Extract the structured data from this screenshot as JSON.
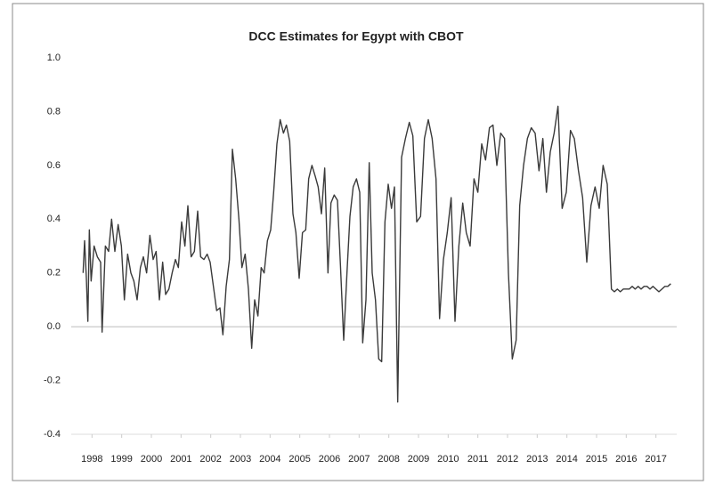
{
  "chart_data": {
    "type": "line",
    "title": "DCC Estimates for Egypt with CBOT",
    "color": "#3a3a3a",
    "x": [
      1997.7,
      1997.75,
      1997.81,
      1997.86,
      1997.91,
      1997.97,
      1998.07,
      1998.18,
      1998.29,
      1998.34,
      1998.45,
      1998.56,
      1998.66,
      1998.77,
      1998.88,
      1998.99,
      1999.09,
      1999.2,
      1999.31,
      1999.41,
      1999.52,
      1999.63,
      1999.73,
      1999.84,
      1999.95,
      2000.06,
      2000.16,
      2000.27,
      2000.38,
      2000.48,
      2000.59,
      2000.7,
      2000.81,
      2000.91,
      2001.02,
      2001.13,
      2001.23,
      2001.34,
      2001.45,
      2001.56,
      2001.66,
      2001.77,
      2001.88,
      2001.98,
      2002.09,
      2002.2,
      2002.31,
      2002.41,
      2002.52,
      2002.63,
      2002.73,
      2002.84,
      2002.95,
      2003.05,
      2003.16,
      2003.27,
      2003.38,
      2003.48,
      2003.59,
      2003.7,
      2003.8,
      2003.91,
      2004.02,
      2004.12,
      2004.23,
      2004.34,
      2004.45,
      2004.55,
      2004.66,
      2004.77,
      2004.87,
      2004.98,
      2005.09,
      2005.2,
      2005.3,
      2005.41,
      2005.52,
      2005.62,
      2005.73,
      2005.84,
      2005.95,
      2006.05,
      2006.16,
      2006.27,
      2006.37,
      2006.48,
      2006.59,
      2006.69,
      2006.8,
      2006.91,
      2007.02,
      2007.12,
      2007.23,
      2007.34,
      2007.44,
      2007.55,
      2007.66,
      2007.76,
      2007.87,
      2007.98,
      2008.09,
      2008.19,
      2008.3,
      2008.43,
      2008.56,
      2008.69,
      2008.81,
      2008.94,
      2009.07,
      2009.2,
      2009.33,
      2009.46,
      2009.59,
      2009.71,
      2009.84,
      2009.97,
      2010.1,
      2010.23,
      2010.36,
      2010.49,
      2010.61,
      2010.74,
      2010.87,
      2011.0,
      2011.13,
      2011.26,
      2011.39,
      2011.51,
      2011.64,
      2011.77,
      2011.9,
      2012.03,
      2012.16,
      2012.29,
      2012.41,
      2012.54,
      2012.67,
      2012.8,
      2012.93,
      2013.06,
      2013.19,
      2013.31,
      2013.44,
      2013.57,
      2013.7,
      2013.84,
      2013.98,
      2014.12,
      2014.25,
      2014.39,
      2014.53,
      2014.67,
      2014.81,
      2014.95,
      2015.09,
      2015.22,
      2015.36,
      2015.5,
      2015.6,
      2015.7,
      2015.8,
      2015.9,
      2016.0,
      2016.1,
      2016.2,
      2016.3,
      2016.4,
      2016.5,
      2016.6,
      2016.7,
      2016.8,
      2016.9,
      2017.0,
      2017.1,
      2017.2,
      2017.3,
      2017.4,
      2017.5
    ],
    "values": [
      0.2,
      0.32,
      0.18,
      0.02,
      0.36,
      0.17,
      0.3,
      0.26,
      0.24,
      -0.02,
      0.3,
      0.28,
      0.4,
      0.28,
      0.38,
      0.3,
      0.1,
      0.27,
      0.2,
      0.17,
      0.1,
      0.22,
      0.26,
      0.2,
      0.34,
      0.25,
      0.28,
      0.1,
      0.24,
      0.12,
      0.14,
      0.2,
      0.25,
      0.22,
      0.39,
      0.3,
      0.45,
      0.26,
      0.28,
      0.43,
      0.26,
      0.25,
      0.27,
      0.24,
      0.15,
      0.06,
      0.07,
      -0.03,
      0.15,
      0.25,
      0.66,
      0.55,
      0.4,
      0.22,
      0.27,
      0.14,
      -0.08,
      0.1,
      0.04,
      0.22,
      0.2,
      0.32,
      0.36,
      0.5,
      0.68,
      0.77,
      0.72,
      0.75,
      0.69,
      0.42,
      0.35,
      0.18,
      0.35,
      0.36,
      0.55,
      0.6,
      0.56,
      0.52,
      0.42,
      0.59,
      0.2,
      0.46,
      0.49,
      0.47,
      0.23,
      -0.05,
      0.2,
      0.41,
      0.52,
      0.55,
      0.5,
      -0.06,
      0.1,
      0.61,
      0.2,
      0.1,
      -0.12,
      -0.13,
      0.39,
      0.53,
      0.44,
      0.52,
      -0.28,
      0.63,
      0.7,
      0.76,
      0.71,
      0.39,
      0.41,
      0.7,
      0.77,
      0.7,
      0.55,
      0.03,
      0.25,
      0.35,
      0.48,
      0.02,
      0.3,
      0.46,
      0.35,
      0.3,
      0.55,
      0.5,
      0.68,
      0.62,
      0.74,
      0.75,
      0.6,
      0.72,
      0.7,
      0.2,
      -0.12,
      -0.05,
      0.45,
      0.6,
      0.7,
      0.74,
      0.72,
      0.58,
      0.7,
      0.5,
      0.65,
      0.72,
      0.82,
      0.44,
      0.5,
      0.73,
      0.7,
      0.58,
      0.48,
      0.24,
      0.45,
      0.52,
      0.44,
      0.6,
      0.53,
      0.14,
      0.13,
      0.14,
      0.13,
      0.14,
      0.14,
      0.14,
      0.15,
      0.14,
      0.15,
      0.14,
      0.15,
      0.15,
      0.14,
      0.15,
      0.14,
      0.13,
      0.14,
      0.15,
      0.15,
      0.16
    ],
    "xlim": [
      1997.3,
      2017.7
    ],
    "xticks": [
      1998,
      1999,
      2000,
      2001,
      2002,
      2003,
      2004,
      2005,
      2006,
      2007,
      2008,
      2009,
      2010,
      2011,
      2012,
      2013,
      2014,
      2015,
      2016,
      2017
    ],
    "ylim": [
      -0.4,
      1.0
    ],
    "yticks": [
      {
        "value": -0.4,
        "label": "-0.4"
      },
      {
        "value": -0.2,
        "label": "-0.2"
      },
      {
        "value": 0,
        "label": "0.0"
      },
      0.2,
      0.4,
      0.6,
      0.8,
      {
        "value": 1.0,
        "label": "1.0"
      }
    ]
  }
}
